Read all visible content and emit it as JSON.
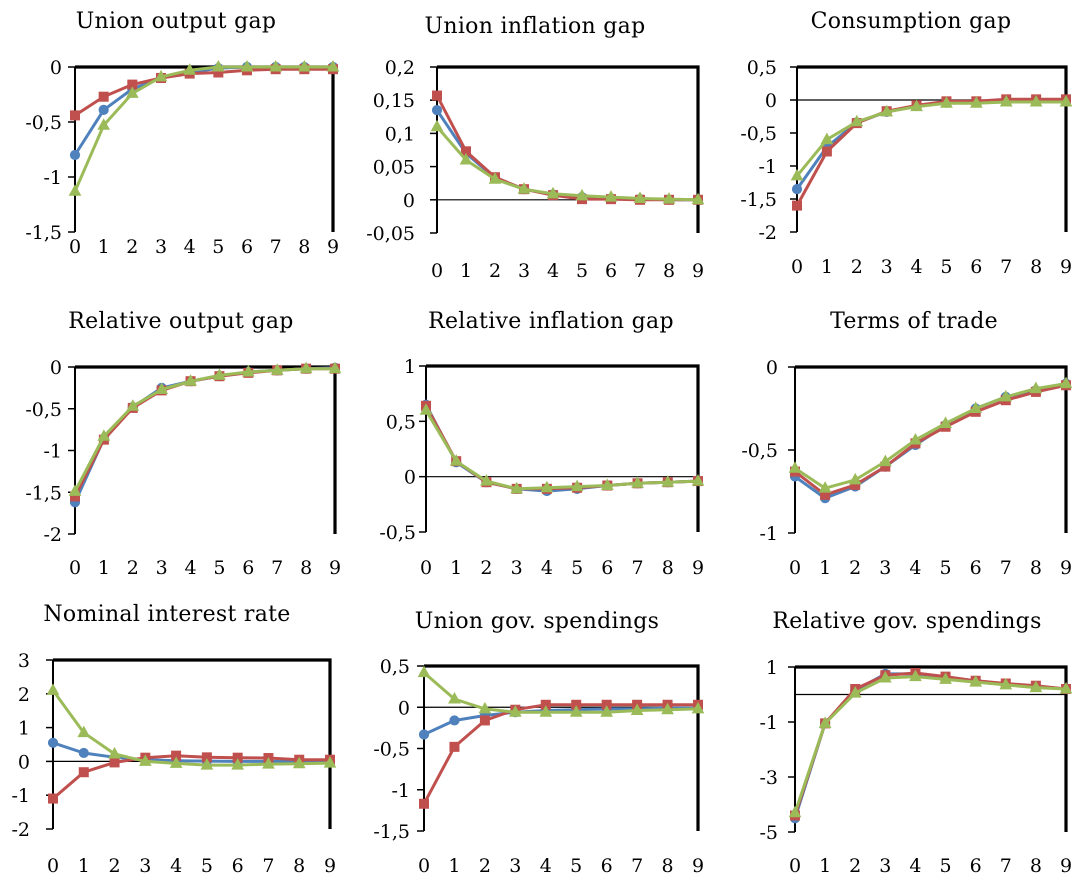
{
  "chart_data": [
    {
      "type": "line",
      "title": "Union output gap",
      "categories": [
        "0",
        "1",
        "2",
        "3",
        "4",
        "5",
        "6",
        "7",
        "8",
        "9"
      ],
      "ylim": [
        -1.5,
        0
      ],
      "yticks": [
        0,
        -0.5,
        -1,
        -1.5
      ],
      "ytick_labels": [
        "0",
        "-0,5",
        "-1",
        "-1,5"
      ],
      "grid": false,
      "series": [
        {
          "color": "#4f81bd",
          "marker": "circle",
          "values": [
            -0.8,
            -0.39,
            -0.2,
            -0.1,
            -0.05,
            -0.01,
            0,
            0,
            0,
            0
          ]
        },
        {
          "color": "#c0504d",
          "marker": "square",
          "values": [
            -0.44,
            -0.27,
            -0.16,
            -0.1,
            -0.06,
            -0.05,
            -0.03,
            -0.02,
            -0.02,
            -0.02
          ]
        },
        {
          "color": "#9bbb59",
          "marker": "triangle",
          "values": [
            -1.13,
            -0.53,
            -0.24,
            -0.09,
            -0.03,
            0,
            0,
            0,
            0,
            0
          ]
        }
      ]
    },
    {
      "type": "line",
      "title": "Union inflation gap",
      "categories": [
        "0",
        "1",
        "2",
        "3",
        "4",
        "5",
        "6",
        "7",
        "8",
        "9"
      ],
      "ylim": [
        -0.05,
        0.2
      ],
      "yticks": [
        0.2,
        0.15,
        0.1,
        0.05,
        0,
        -0.05
      ],
      "ytick_labels": [
        "0,2",
        "0,15",
        "0,1",
        "0,05",
        "0",
        "-0,05"
      ],
      "grid": false,
      "series": [
        {
          "color": "#4f81bd",
          "marker": "circle",
          "values": [
            0.135,
            0.07,
            0.033,
            0.016,
            0.008,
            0.004,
            0.002,
            0.001,
            0,
            0
          ]
        },
        {
          "color": "#c0504d",
          "marker": "square",
          "values": [
            0.157,
            0.073,
            0.034,
            0.016,
            0.007,
            0.001,
            0.001,
            0,
            0,
            0
          ]
        },
        {
          "color": "#9bbb59",
          "marker": "triangle",
          "values": [
            0.11,
            0.06,
            0.031,
            0.016,
            0.009,
            0.006,
            0.004,
            0.002,
            0.001,
            0
          ]
        }
      ]
    },
    {
      "type": "line",
      "title": "Consumption gap",
      "categories": [
        "0",
        "1",
        "2",
        "3",
        "4",
        "5",
        "6",
        "7",
        "8",
        "9"
      ],
      "ylim": [
        -2,
        0.5
      ],
      "yticks": [
        0.5,
        0,
        -0.5,
        -1,
        -1.5,
        -2
      ],
      "ytick_labels": [
        "0,5",
        "0",
        "-0,5",
        "-1",
        "-1,5",
        "-2"
      ],
      "grid": false,
      "series": [
        {
          "color": "#4f81bd",
          "marker": "circle",
          "values": [
            -1.35,
            -0.71,
            -0.34,
            -0.18,
            -0.09,
            -0.04,
            -0.03,
            -0.01,
            -0.01,
            -0.01
          ]
        },
        {
          "color": "#c0504d",
          "marker": "square",
          "values": [
            -1.6,
            -0.78,
            -0.35,
            -0.17,
            -0.08,
            -0.02,
            -0.02,
            0.01,
            0.01,
            0.01
          ]
        },
        {
          "color": "#9bbb59",
          "marker": "triangle",
          "values": [
            -1.15,
            -0.6,
            -0.33,
            -0.18,
            -0.1,
            -0.05,
            -0.05,
            -0.03,
            -0.03,
            -0.03
          ]
        }
      ]
    },
    {
      "type": "line",
      "title": "Relative output gap",
      "categories": [
        "0",
        "1",
        "2",
        "3",
        "4",
        "5",
        "6",
        "7",
        "8",
        "9"
      ],
      "ylim": [
        -2,
        0
      ],
      "yticks": [
        0,
        -0.5,
        -1,
        -1.5,
        -2
      ],
      "ytick_labels": [
        "0",
        "-0,5",
        "-1",
        "-1,5",
        "-2"
      ],
      "grid": false,
      "series": [
        {
          "color": "#4f81bd",
          "marker": "circle",
          "values": [
            -1.62,
            -0.86,
            -0.48,
            -0.25,
            -0.17,
            -0.11,
            -0.06,
            -0.04,
            -0.02,
            -0.01
          ]
        },
        {
          "color": "#c0504d",
          "marker": "square",
          "values": [
            -1.55,
            -0.87,
            -0.49,
            -0.28,
            -0.17,
            -0.11,
            -0.07,
            -0.04,
            -0.02,
            -0.02
          ]
        },
        {
          "color": "#9bbb59",
          "marker": "triangle",
          "values": [
            -1.49,
            -0.83,
            -0.47,
            -0.27,
            -0.17,
            -0.1,
            -0.06,
            -0.04,
            -0.02,
            -0.02
          ]
        }
      ]
    },
    {
      "type": "line",
      "title": "Relative inflation gap",
      "categories": [
        "0",
        "1",
        "2",
        "3",
        "4",
        "5",
        "6",
        "7",
        "8",
        "9"
      ],
      "ylim": [
        -0.5,
        1
      ],
      "yticks": [
        1,
        0.5,
        0,
        -0.5
      ],
      "ytick_labels": [
        "1",
        "0,5",
        "0",
        "-0,5"
      ],
      "grid": false,
      "series": [
        {
          "color": "#4f81bd",
          "marker": "circle",
          "values": [
            0.65,
            0.13,
            -0.05,
            -0.11,
            -0.13,
            -0.11,
            -0.08,
            -0.06,
            -0.05,
            -0.04
          ]
        },
        {
          "color": "#c0504d",
          "marker": "square",
          "values": [
            0.64,
            0.14,
            -0.05,
            -0.11,
            -0.11,
            -0.1,
            -0.08,
            -0.06,
            -0.05,
            -0.04
          ]
        },
        {
          "color": "#9bbb59",
          "marker": "triangle",
          "values": [
            0.6,
            0.14,
            -0.04,
            -0.11,
            -0.1,
            -0.09,
            -0.08,
            -0.06,
            -0.05,
            -0.04
          ]
        }
      ]
    },
    {
      "type": "line",
      "title": "Terms of trade",
      "categories": [
        "0",
        "1",
        "2",
        "3",
        "4",
        "5",
        "6",
        "7",
        "8",
        "9"
      ],
      "ylim": [
        -1,
        0
      ],
      "yticks": [
        0,
        -0.5,
        -1
      ],
      "ytick_labels": [
        "0",
        "-0,5",
        "-1"
      ],
      "grid": false,
      "series": [
        {
          "color": "#4f81bd",
          "marker": "circle",
          "values": [
            -0.66,
            -0.79,
            -0.72,
            -0.6,
            -0.47,
            -0.35,
            -0.25,
            -0.18,
            -0.14,
            -0.1
          ]
        },
        {
          "color": "#c0504d",
          "marker": "square",
          "values": [
            -0.63,
            -0.77,
            -0.71,
            -0.6,
            -0.46,
            -0.36,
            -0.27,
            -0.2,
            -0.15,
            -0.11
          ]
        },
        {
          "color": "#9bbb59",
          "marker": "triangle",
          "values": [
            -0.61,
            -0.73,
            -0.68,
            -0.57,
            -0.44,
            -0.34,
            -0.25,
            -0.18,
            -0.13,
            -0.1
          ]
        }
      ]
    },
    {
      "type": "line",
      "title": "Nominal interest rate",
      "categories": [
        "0",
        "1",
        "2",
        "3",
        "4",
        "5",
        "6",
        "7",
        "8",
        "9"
      ],
      "ylim": [
        -2,
        3
      ],
      "yticks": [
        3,
        2,
        1,
        0,
        -1,
        -2
      ],
      "ytick_labels": [
        "3",
        "2",
        "1",
        "0",
        "-1",
        "-2"
      ],
      "grid": false,
      "series": [
        {
          "color": "#4f81bd",
          "marker": "circle",
          "values": [
            0.55,
            0.25,
            0.12,
            0.05,
            0.02,
            0.01,
            0,
            0,
            0,
            0
          ]
        },
        {
          "color": "#c0504d",
          "marker": "square",
          "values": [
            -1.1,
            -0.32,
            -0.03,
            0.11,
            0.17,
            0.12,
            0.11,
            0.1,
            0.05,
            0.05
          ]
        },
        {
          "color": "#9bbb59",
          "marker": "triangle",
          "values": [
            2.1,
            0.85,
            0.22,
            0,
            -0.06,
            -0.11,
            -0.11,
            -0.08,
            -0.07,
            -0.05
          ]
        }
      ]
    },
    {
      "type": "line",
      "title": "Union gov. spendings",
      "categories": [
        "0",
        "1",
        "2",
        "3",
        "4",
        "5",
        "6",
        "7",
        "8",
        "9"
      ],
      "ylim": [
        -1.5,
        0.5
      ],
      "yticks": [
        0.5,
        0,
        -0.5,
        -1,
        -1.5
      ],
      "ytick_labels": [
        "0,5",
        "0",
        "-0,5",
        "-1",
        "-1,5"
      ],
      "grid": false,
      "series": [
        {
          "color": "#4f81bd",
          "marker": "circle",
          "values": [
            -0.33,
            -0.16,
            -0.1,
            -0.06,
            -0.04,
            -0.03,
            -0.02,
            -0.02,
            -0.01,
            -0.01
          ]
        },
        {
          "color": "#c0504d",
          "marker": "square",
          "values": [
            -1.17,
            -0.48,
            -0.16,
            -0.03,
            0.03,
            0.03,
            0.03,
            0.03,
            0.03,
            0.03
          ]
        },
        {
          "color": "#9bbb59",
          "marker": "triangle",
          "values": [
            0.42,
            0.1,
            -0.02,
            -0.06,
            -0.06,
            -0.06,
            -0.06,
            -0.04,
            -0.03,
            -0.02
          ]
        }
      ]
    },
    {
      "type": "line",
      "title": "Relative gov. spendings",
      "categories": [
        "0",
        "1",
        "2",
        "3",
        "4",
        "5",
        "6",
        "7",
        "8",
        "9"
      ],
      "ylim": [
        -5,
        1
      ],
      "yticks": [
        1,
        -1,
        -3,
        -5
      ],
      "ytick_labels": [
        "1",
        "-1",
        "-3",
        "-5"
      ],
      "grid": false,
      "series": [
        {
          "color": "#4f81bd",
          "marker": "circle",
          "values": [
            -4.5,
            -1.05,
            0.15,
            0.75,
            0.75,
            0.62,
            0.5,
            0.38,
            0.3,
            0.2
          ]
        },
        {
          "color": "#c0504d",
          "marker": "square",
          "values": [
            -4.4,
            -1.05,
            0.2,
            0.7,
            0.78,
            0.65,
            0.5,
            0.4,
            0.32,
            0.2
          ]
        },
        {
          "color": "#9bbb59",
          "marker": "triangle",
          "values": [
            -4.3,
            -1.05,
            0.05,
            0.6,
            0.65,
            0.55,
            0.45,
            0.35,
            0.25,
            0.2
          ]
        }
      ]
    }
  ]
}
